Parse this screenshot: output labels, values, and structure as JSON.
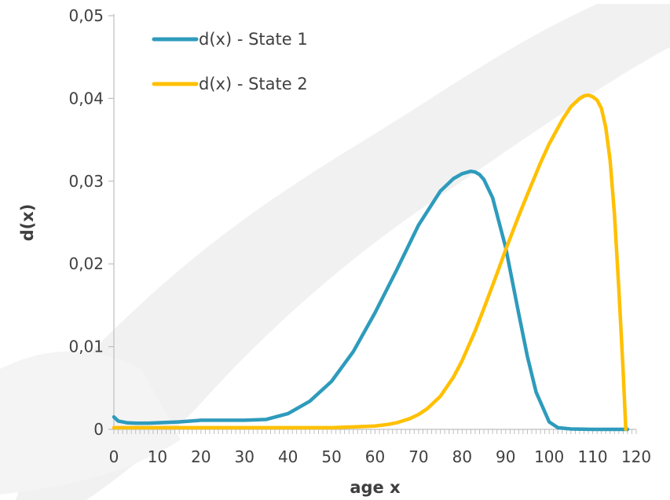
{
  "chart_data": {
    "type": "line",
    "title": "",
    "xlabel": "age x",
    "ylabel": "d(x)",
    "xlim": [
      0,
      120
    ],
    "ylim": [
      0,
      0.05
    ],
    "x_ticks": [
      0,
      10,
      20,
      30,
      40,
      50,
      60,
      70,
      80,
      90,
      100,
      110,
      120
    ],
    "x_tick_labels": [
      "0",
      "10",
      "20",
      "30",
      "40",
      "50",
      "60",
      "70",
      "80",
      "90",
      "100",
      "110",
      "120"
    ],
    "y_ticks": [
      0,
      0.01,
      0.02,
      0.03,
      0.04,
      0.05
    ],
    "y_tick_labels": [
      "0",
      "0,01",
      "0,02",
      "0,03",
      "0,04",
      "0,05"
    ],
    "grid": false,
    "legend_position": "top-left",
    "series": [
      {
        "name": "d(x) - State 1",
        "color": "#2e9bbc",
        "x": [
          0,
          1,
          3,
          5,
          8,
          10,
          15,
          20,
          25,
          30,
          35,
          40,
          45,
          50,
          55,
          60,
          65,
          70,
          75,
          78,
          80,
          82,
          83,
          84,
          85,
          87,
          90,
          93,
          95,
          97,
          100,
          102,
          105,
          110,
          115,
          118
        ],
        "values": [
          0.0015,
          0.001,
          0.0008,
          0.00075,
          0.00075,
          0.0008,
          0.0009,
          0.0011,
          0.0011,
          0.0011,
          0.0012,
          0.0019,
          0.0034,
          0.0058,
          0.0094,
          0.0141,
          0.0193,
          0.0247,
          0.0288,
          0.0303,
          0.0309,
          0.0312,
          0.0311,
          0.0308,
          0.0302,
          0.028,
          0.022,
          0.014,
          0.0088,
          0.0045,
          0.0009,
          0.0002,
          5e-05,
          0.0,
          0.0,
          0.0
        ]
      },
      {
        "name": "d(x) - State 2",
        "color": "#ffc000",
        "x": [
          0,
          20,
          40,
          50,
          55,
          60,
          63,
          65,
          68,
          70,
          72,
          75,
          78,
          80,
          83,
          85,
          88,
          90,
          93,
          95,
          98,
          100,
          103,
          105,
          107,
          108,
          109,
          110,
          111,
          112,
          113,
          114,
          115,
          116,
          117,
          117.6
        ],
        "values": [
          0.0002,
          0.0002,
          0.0002,
          0.0002,
          0.0003,
          0.0004,
          0.0006,
          0.0008,
          0.0013,
          0.0018,
          0.0025,
          0.004,
          0.0063,
          0.0083,
          0.0119,
          0.0146,
          0.0188,
          0.0217,
          0.0258,
          0.0284,
          0.0322,
          0.0345,
          0.0374,
          0.039,
          0.04,
          0.0403,
          0.0404,
          0.0402,
          0.0398,
          0.0388,
          0.0365,
          0.0325,
          0.026,
          0.017,
          0.007,
          0.0
        ]
      }
    ]
  }
}
